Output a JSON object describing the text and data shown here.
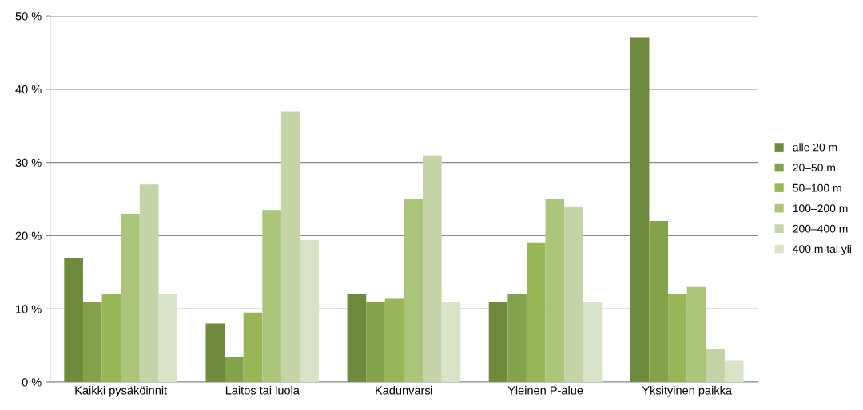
{
  "chart_data": {
    "type": "bar",
    "categories": [
      "Kaikki pysäköinnit",
      "Laitos tai luola",
      "Kadunvarsi",
      "Yleinen P-alue",
      "Yksityinen paikka"
    ],
    "series": [
      {
        "name": "alle 20 m",
        "color": "#6f8a3c",
        "values": [
          17,
          8,
          12,
          11,
          47
        ]
      },
      {
        "name": "20–50 m",
        "color": "#84a24b",
        "values": [
          11,
          3.4,
          11,
          12,
          22
        ]
      },
      {
        "name": "50–100 m",
        "color": "#98b658",
        "values": [
          12,
          9.5,
          11.4,
          19,
          12
        ]
      },
      {
        "name": "100–200 m",
        "color": "#abc57b",
        "values": [
          23,
          23.5,
          25,
          25,
          13
        ]
      },
      {
        "name": "200–400 m",
        "color": "#c4d4a6",
        "values": [
          27,
          37,
          31,
          24,
          4.5
        ]
      },
      {
        "name": "400 m tai yli",
        "color": "#d9e3c8",
        "values": [
          12,
          19.4,
          11,
          11,
          3
        ]
      }
    ],
    "ylim": [
      0,
      50
    ],
    "yticks": [
      {
        "value": 0,
        "label": "0 %"
      },
      {
        "value": 10,
        "label": "10 %"
      },
      {
        "value": 20,
        "label": "20 %"
      },
      {
        "value": 30,
        "label": "30 %"
      },
      {
        "value": 40,
        "label": "40 %"
      },
      {
        "value": 50,
        "label": "50 %"
      }
    ],
    "grid": "y",
    "legend": "right"
  }
}
